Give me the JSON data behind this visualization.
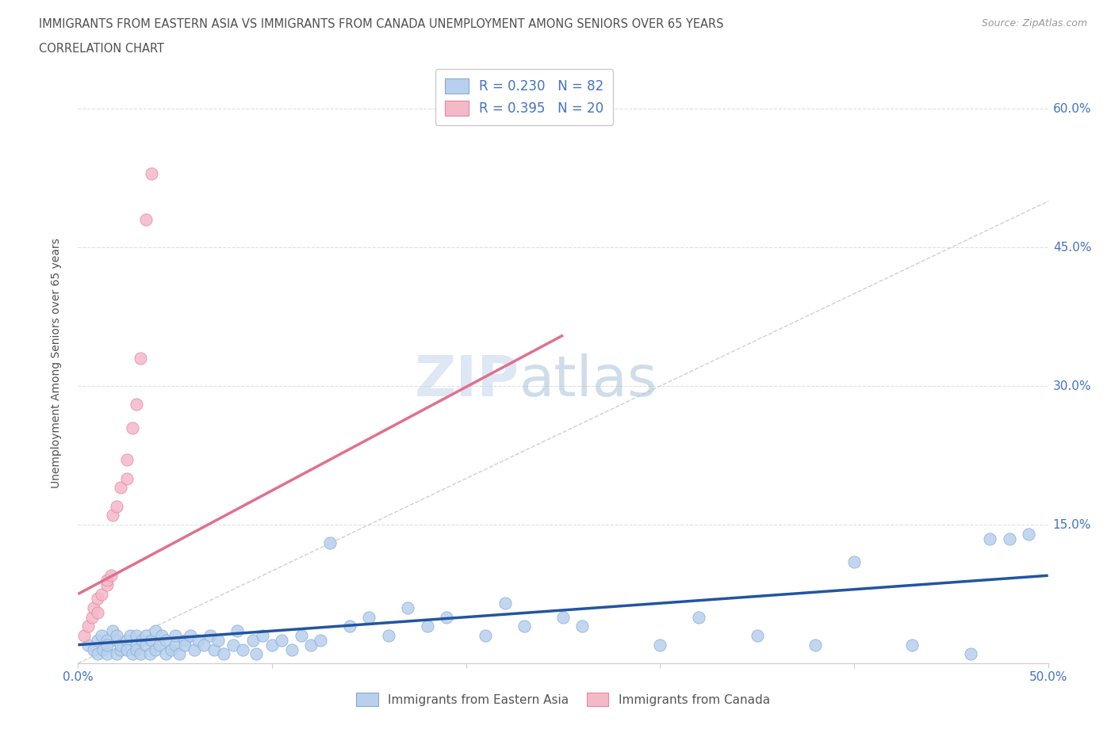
{
  "title_line1": "IMMIGRANTS FROM EASTERN ASIA VS IMMIGRANTS FROM CANADA UNEMPLOYMENT AMONG SENIORS OVER 65 YEARS",
  "title_line2": "CORRELATION CHART",
  "source_text": "Source: ZipAtlas.com",
  "ylabel": "Unemployment Among Seniors over 65 years",
  "watermark_zip": "ZIP",
  "watermark_atlas": "atlas",
  "legend_label_blue": "Immigrants from Eastern Asia",
  "legend_label_pink": "Immigrants from Canada",
  "R_blue": 0.23,
  "N_blue": 82,
  "R_pink": 0.395,
  "N_pink": 20,
  "xlim": [
    0.0,
    0.5
  ],
  "ylim": [
    0.0,
    0.65
  ],
  "blue_scatter_color": "#b8d0ed",
  "pink_scatter_color": "#f5b8c8",
  "blue_edge_color": "#85aad4",
  "pink_edge_color": "#e088a0",
  "blue_line_color": "#2255a0",
  "pink_line_color": "#e07090",
  "ref_line_color": "#d0d0d0",
  "grid_color": "#e0e0e0",
  "title_color": "#505050",
  "axis_label_color": "#4472c4",
  "tick_color": "#4472c4",
  "blue_regline_x": [
    0.0,
    0.5
  ],
  "blue_regline_y": [
    0.02,
    0.095
  ],
  "pink_regline_x": [
    0.0,
    0.25
  ],
  "pink_regline_y": [
    0.075,
    0.355
  ],
  "ref_line_x": [
    0.0,
    0.6
  ],
  "ref_line_y": [
    0.0,
    0.6
  ],
  "blue_points_x": [
    0.005,
    0.008,
    0.01,
    0.01,
    0.012,
    0.013,
    0.015,
    0.015,
    0.015,
    0.018,
    0.02,
    0.02,
    0.02,
    0.022,
    0.022,
    0.025,
    0.025,
    0.027,
    0.028,
    0.03,
    0.03,
    0.03,
    0.032,
    0.033,
    0.035,
    0.035,
    0.037,
    0.038,
    0.04,
    0.04,
    0.042,
    0.043,
    0.045,
    0.045,
    0.048,
    0.05,
    0.05,
    0.052,
    0.055,
    0.055,
    0.058,
    0.06,
    0.062,
    0.065,
    0.068,
    0.07,
    0.072,
    0.075,
    0.08,
    0.082,
    0.085,
    0.09,
    0.092,
    0.095,
    0.1,
    0.105,
    0.11,
    0.115,
    0.12,
    0.125,
    0.13,
    0.14,
    0.15,
    0.16,
    0.17,
    0.18,
    0.19,
    0.21,
    0.22,
    0.23,
    0.25,
    0.26,
    0.3,
    0.32,
    0.35,
    0.38,
    0.4,
    0.43,
    0.46,
    0.47,
    0.48,
    0.49
  ],
  "blue_points_y": [
    0.02,
    0.015,
    0.025,
    0.01,
    0.03,
    0.015,
    0.025,
    0.01,
    0.02,
    0.035,
    0.01,
    0.025,
    0.03,
    0.015,
    0.02,
    0.025,
    0.015,
    0.03,
    0.01,
    0.02,
    0.03,
    0.015,
    0.01,
    0.025,
    0.02,
    0.03,
    0.01,
    0.025,
    0.015,
    0.035,
    0.02,
    0.03,
    0.01,
    0.025,
    0.015,
    0.02,
    0.03,
    0.01,
    0.025,
    0.02,
    0.03,
    0.015,
    0.025,
    0.02,
    0.03,
    0.015,
    0.025,
    0.01,
    0.02,
    0.035,
    0.015,
    0.025,
    0.01,
    0.03,
    0.02,
    0.025,
    0.015,
    0.03,
    0.02,
    0.025,
    0.13,
    0.04,
    0.05,
    0.03,
    0.06,
    0.04,
    0.05,
    0.03,
    0.065,
    0.04,
    0.05,
    0.04,
    0.02,
    0.05,
    0.03,
    0.02,
    0.11,
    0.02,
    0.01,
    0.135,
    0.135,
    0.14
  ],
  "pink_points_x": [
    0.003,
    0.005,
    0.007,
    0.008,
    0.01,
    0.01,
    0.012,
    0.015,
    0.015,
    0.017,
    0.018,
    0.02,
    0.022,
    0.025,
    0.025,
    0.028,
    0.03,
    0.032,
    0.035,
    0.038
  ],
  "pink_points_y": [
    0.03,
    0.04,
    0.05,
    0.06,
    0.055,
    0.07,
    0.075,
    0.085,
    0.09,
    0.095,
    0.16,
    0.17,
    0.19,
    0.2,
    0.22,
    0.255,
    0.28,
    0.33,
    0.48,
    0.53
  ]
}
